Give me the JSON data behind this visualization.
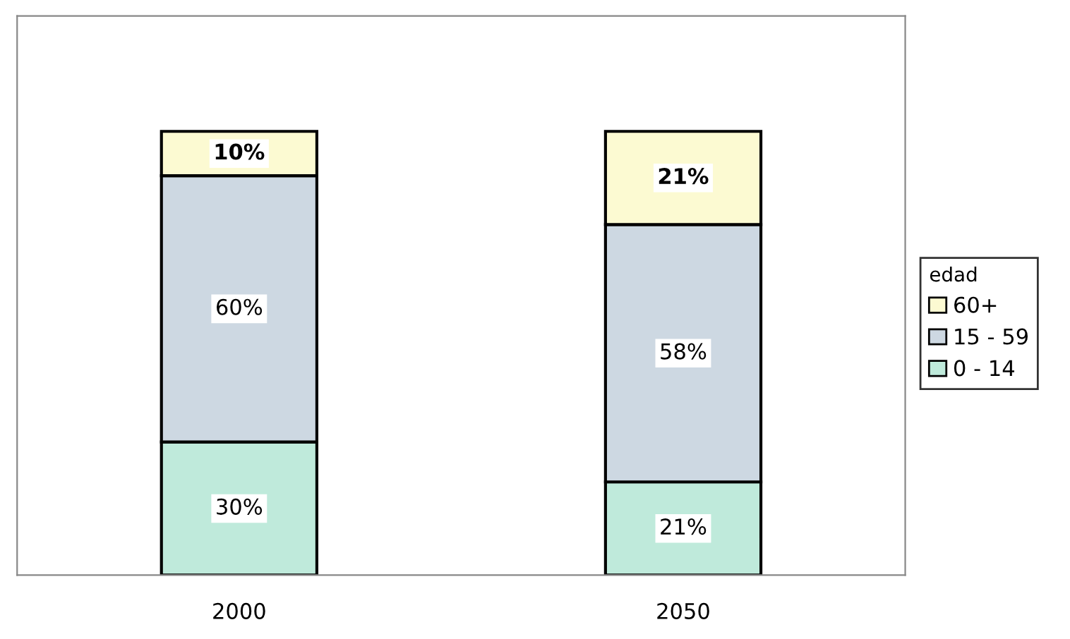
{
  "chart_data": {
    "type": "bar",
    "stacked": true,
    "categories": [
      "2000",
      "2050"
    ],
    "legend_title": "edad",
    "legend": "right",
    "grid": false,
    "series": [
      {
        "name": "0 - 14",
        "color": "#bfeadb",
        "values": [
          30,
          21
        ],
        "value_labels": [
          "30%",
          "21%"
        ]
      },
      {
        "name": "15 - 59",
        "color": "#cdd8e2",
        "values": [
          60,
          58
        ],
        "value_labels": [
          "60%",
          "58%"
        ]
      },
      {
        "name": "60+",
        "color": "#fcfad2",
        "values": [
          10,
          21
        ],
        "value_labels": [
          "10%",
          "21%"
        ]
      }
    ]
  }
}
